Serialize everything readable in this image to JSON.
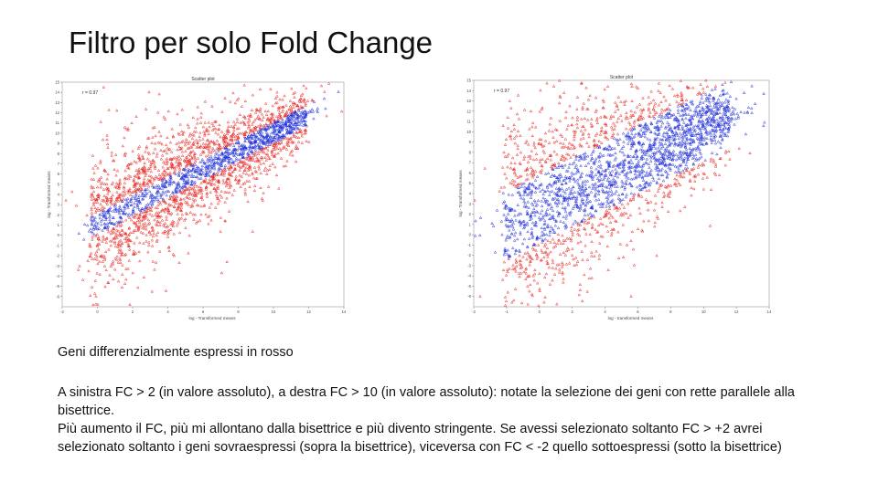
{
  "slide": {
    "title": "Filtro per solo Fold Change",
    "caption": "Geni differenzialmente espressi in rosso",
    "paragraph1": "A sinistra FC > 2 (in valore assoluto), a destra FC > 10 (in valore assoluto): notate la selezione dei geni con rette parallele alla bisettrice.",
    "paragraph2": "Più aumento il FC, più mi allontano dalla bisettrice e più divento stringente. Se avessi selezionato soltanto FC > +2 avrei selezionato soltanto i geni sovraespressi (sopra la bisettrice), viceversa con FC < -2 quello sottoespressi (sotto la bisettrice)"
  },
  "colors": {
    "differential": "#e8201c",
    "non_differential": "#1f2fd8"
  },
  "chart_data": [
    {
      "type": "scatter",
      "title": "Scatter plot",
      "annotation": "r = 0.97",
      "xlabel": "log - Transformed means",
      "ylabel": "log - Transformed means",
      "xlim": [
        -1,
        14
      ],
      "ylim": [
        -7,
        15
      ],
      "x_ticks": [
        "-2",
        "0",
        "2",
        "4",
        "6",
        "8",
        "10",
        "12",
        "14"
      ],
      "y_ticks": [
        "-6",
        "-5",
        "-4",
        "-3",
        "-2",
        "-1",
        "0",
        "1",
        "2",
        "3",
        "4",
        "5",
        "6",
        "7",
        "8",
        "9",
        "10",
        "11",
        "12",
        "13",
        "14",
        "15"
      ],
      "fc_threshold_abs": 2,
      "band_halfwidth_log": 1,
      "series": [
        {
          "name": "",
          "color": "#e8201c",
          "role": "differential"
        },
        {
          "name": "",
          "color": "#1f2fd8",
          "role": "non_differential"
        }
      ]
    },
    {
      "type": "scatter",
      "title": "Scatter plot",
      "annotation": "r = 0.97",
      "xlabel": "log - transformed means",
      "ylabel": "log - Transformed means",
      "xlim": [
        -1,
        14
      ],
      "ylim": [
        -7,
        15
      ],
      "x_ticks": [
        "-2",
        "-1",
        "0",
        "2",
        "4",
        "6",
        "8",
        "10",
        "12",
        "14"
      ],
      "y_ticks": [
        "-6",
        "-5",
        "-4",
        "-3",
        "-2",
        "-1",
        "0",
        "1",
        "2",
        "3",
        "4",
        "5",
        "6",
        "7",
        "8",
        "9",
        "10",
        "11",
        "12",
        "13",
        "14",
        "15"
      ],
      "fc_threshold_abs": 10,
      "band_halfwidth_log": 3.3,
      "series": [
        {
          "name": "",
          "color": "#e8201c",
          "role": "differential"
        },
        {
          "name": "",
          "color": "#1f2fd8",
          "role": "non_differential"
        }
      ]
    }
  ]
}
